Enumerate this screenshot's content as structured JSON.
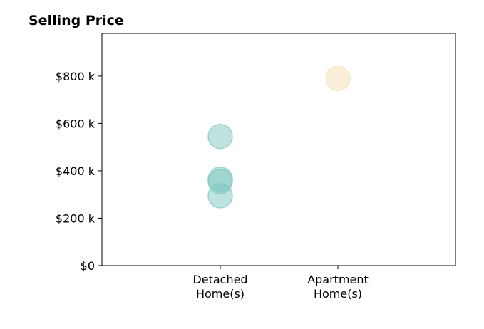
{
  "chart_data": {
    "type": "scatter",
    "title": "Selling Price",
    "xlabel": "",
    "ylabel": "",
    "categories": [
      [
        "Detached",
        "Home(s)"
      ],
      [
        "Apartment",
        "Home(s)"
      ]
    ],
    "ylim": [
      0,
      980000
    ],
    "yticks": [
      {
        "value": 0,
        "label": "$0"
      },
      {
        "value": 200000,
        "label": "$200 k"
      },
      {
        "value": 400000,
        "label": "$400 k"
      },
      {
        "value": 600000,
        "label": "$600 k"
      },
      {
        "value": 800000,
        "label": "$800 k"
      }
    ],
    "series": [
      {
        "category_index": 0,
        "color": "#7fc8bf",
        "values": [
          545000,
          365000,
          355000,
          295000
        ]
      },
      {
        "category_index": 1,
        "color": "#f3dfb3",
        "values": [
          790000
        ]
      }
    ],
    "grid": false,
    "legend": "none"
  }
}
